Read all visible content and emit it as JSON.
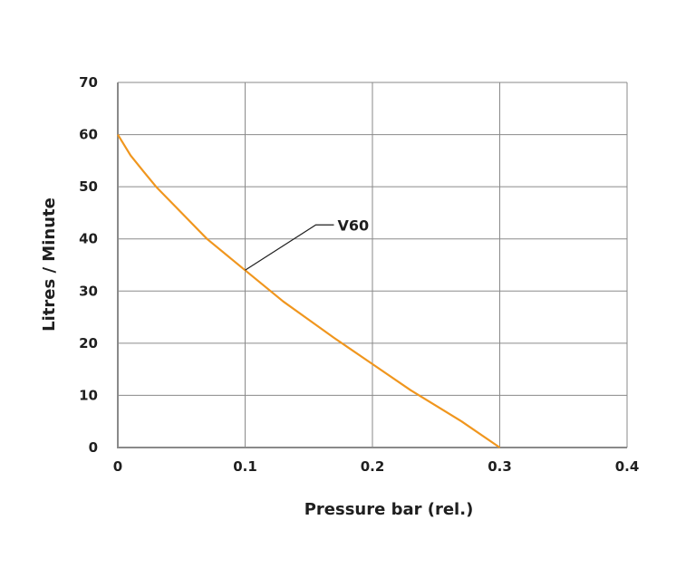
{
  "chart_data": {
    "type": "line",
    "xlabel": "Pressure bar (rel.)",
    "ylabel": "Litres  /  Minute",
    "xlim": [
      0,
      0.4
    ],
    "ylim": [
      0,
      70
    ],
    "x_ticks": [
      0,
      0.1,
      0.2,
      0.3,
      0.4
    ],
    "x_tick_labels": [
      "0",
      "0.1",
      "0.2",
      "0.3",
      "0.4"
    ],
    "y_ticks": [
      0,
      10,
      20,
      30,
      40,
      50,
      60,
      70
    ],
    "y_tick_labels": [
      "0",
      "10",
      "20",
      "30",
      "40",
      "50",
      "60",
      "70"
    ],
    "grid": true,
    "series": [
      {
        "name": "V60",
        "color": "#f0961e",
        "x": [
          0,
          0.01,
          0.02,
          0.03,
          0.05,
          0.07,
          0.1,
          0.13,
          0.15,
          0.17,
          0.2,
          0.23,
          0.25,
          0.27,
          0.3
        ],
        "y": [
          60,
          56,
          53,
          50,
          45,
          40,
          34,
          28,
          24.5,
          21,
          16,
          11,
          8,
          5,
          0
        ]
      }
    ],
    "annotations": [
      {
        "text": "V60",
        "x": 0.1,
        "y": 34
      }
    ]
  }
}
